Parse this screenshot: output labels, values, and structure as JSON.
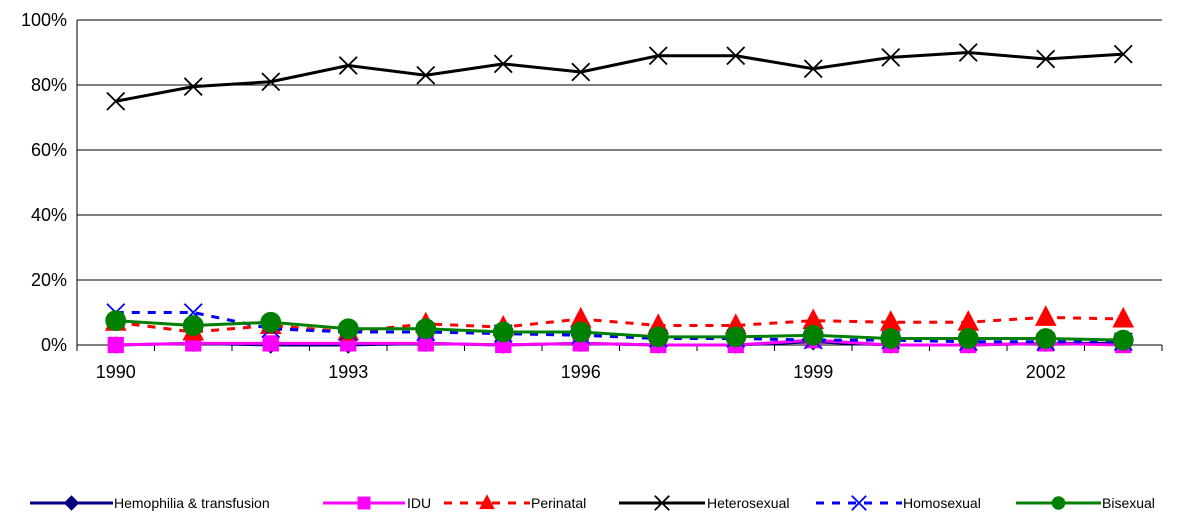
{
  "chart_data": {
    "type": "line",
    "title": "",
    "xlabel": "",
    "ylabel": "",
    "x": [
      1990,
      1991,
      1992,
      1993,
      1994,
      1995,
      1996,
      1997,
      1998,
      1999,
      2000,
      2001,
      2002,
      2003
    ],
    "x_tick_labels": [
      "1990",
      "1993",
      "1996",
      "1999",
      "2002"
    ],
    "x_tick_values": [
      1990,
      1993,
      1996,
      1999,
      2002
    ],
    "y_tick_labels": [
      "0%",
      "20%",
      "40%",
      "60%",
      "80%",
      "100%"
    ],
    "y_tick_values": [
      0,
      20,
      40,
      60,
      80,
      100
    ],
    "ylim": [
      0,
      100
    ],
    "grid": "horizontal",
    "legend_position": "bottom",
    "series": [
      {
        "name": "Hemophilia & transfusion",
        "color": "#000080",
        "dash": "solid",
        "marker": "diamond",
        "values": [
          0,
          0.5,
          0,
          0,
          0.5,
          0,
          0.5,
          0,
          0,
          1,
          0,
          0,
          0.5,
          0.5
        ]
      },
      {
        "name": "IDU",
        "color": "#FF00FF",
        "dash": "solid",
        "marker": "square",
        "values": [
          0,
          0.5,
          0.5,
          0.5,
          0.5,
          0,
          0.5,
          0,
          0,
          1.5,
          0,
          0,
          0.5,
          0
        ]
      },
      {
        "name": "Perinatal",
        "color": "#FF0000",
        "dash": "dashed",
        "marker": "triangle",
        "values": [
          7,
          4,
          6,
          4,
          6.5,
          5.5,
          8,
          6,
          6,
          7.5,
          7,
          7,
          8.5,
          8
        ]
      },
      {
        "name": "Heterosexual",
        "color": "#000000",
        "dash": "solid",
        "marker": "x",
        "values": [
          75,
          79.5,
          81,
          86,
          83,
          86.5,
          84,
          89,
          89,
          85,
          88.5,
          90,
          88,
          89.5
        ]
      },
      {
        "name": "Homosexual",
        "color": "#0000FF",
        "dash": "dashed",
        "marker": "x",
        "values": [
          10,
          10,
          5,
          4,
          4,
          3.5,
          3,
          2,
          2,
          1.5,
          1.5,
          1,
          1,
          1
        ]
      },
      {
        "name": "Bisexual",
        "color": "#008000",
        "dash": "solid",
        "marker": "circle",
        "values": [
          7.5,
          6,
          7,
          5,
          5,
          4,
          4,
          2.5,
          2.5,
          3,
          2,
          2,
          2,
          1.5
        ]
      }
    ]
  }
}
